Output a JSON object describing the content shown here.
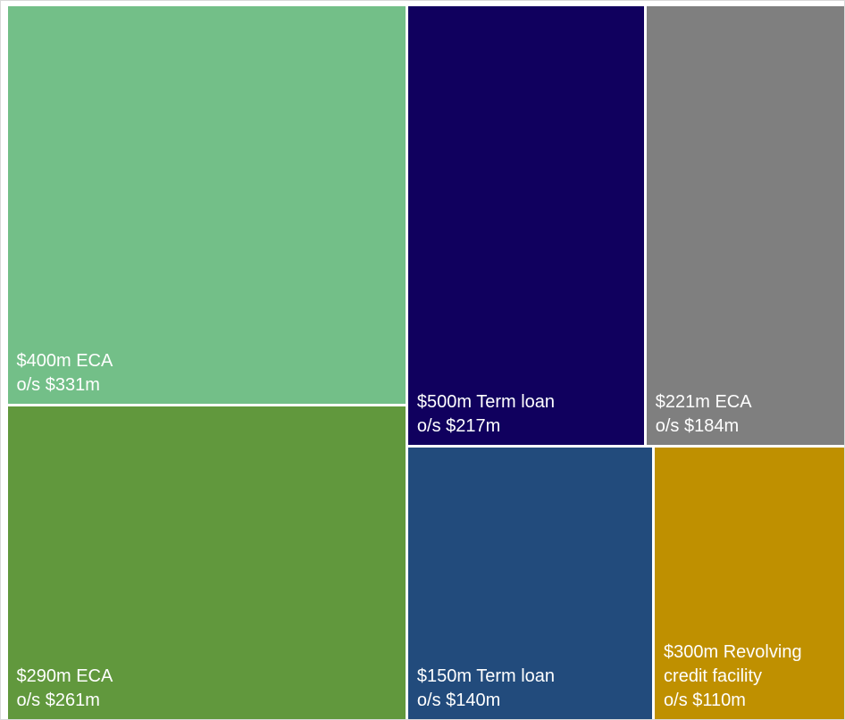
{
  "chart_data": {
    "type": "treemap",
    "categories": [
      "$400m ECA",
      "$290m ECA",
      "$500m Term loan",
      "$221m ECA",
      "$150m Term loan",
      "$300m Revolving credit facility"
    ],
    "values": [
      331,
      261,
      217,
      184,
      140,
      110
    ],
    "value_labels": [
      "o/s $331m",
      "o/s $261m",
      "o/s $217m",
      "o/s $184m",
      "o/s $140m",
      "o/s $110m"
    ],
    "colors": [
      "#73bf88",
      "#61983d",
      "#10005e",
      "#7f7f7f",
      "#224b7c",
      "#bf9000"
    ]
  }
}
